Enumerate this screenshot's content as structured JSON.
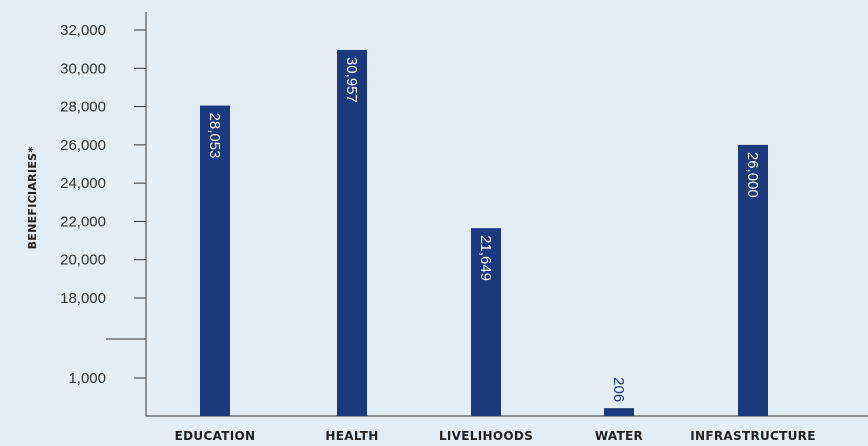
{
  "chart_data": {
    "type": "bar",
    "title": "",
    "xlabel": "",
    "ylabel": "BENEFICIARIES*",
    "categories": [
      "EDUCATION",
      "HEALTH",
      "LIVELIHOODS",
      "WATER",
      "INFRASTRUCTURE"
    ],
    "values": [
      28053,
      30957,
      21649,
      206,
      26000
    ],
    "value_labels": [
      "28,053",
      "30,957",
      "21,649",
      "206",
      "26,000"
    ],
    "yticks": [
      {
        "value": 1000,
        "label": "1,000"
      },
      {
        "value": 18000,
        "label": "18,000"
      },
      {
        "value": 20000,
        "label": "20,000"
      },
      {
        "value": 22000,
        "label": "22,000"
      },
      {
        "value": 24000,
        "label": "24,000"
      },
      {
        "value": 26000,
        "label": "26,000"
      },
      {
        "value": 28000,
        "label": "28,000"
      },
      {
        "value": 30000,
        "label": "30,000"
      },
      {
        "value": 32000,
        "label": "32,000"
      }
    ],
    "axis_break": true,
    "ylim": [
      0,
      32000
    ],
    "grid": false,
    "colors": {
      "bar": "#1b3a7e",
      "background": "#e3eef6",
      "axis": "#333333",
      "label_on_bar": "#ffffff",
      "label_outside": "#1b3a7e"
    }
  }
}
